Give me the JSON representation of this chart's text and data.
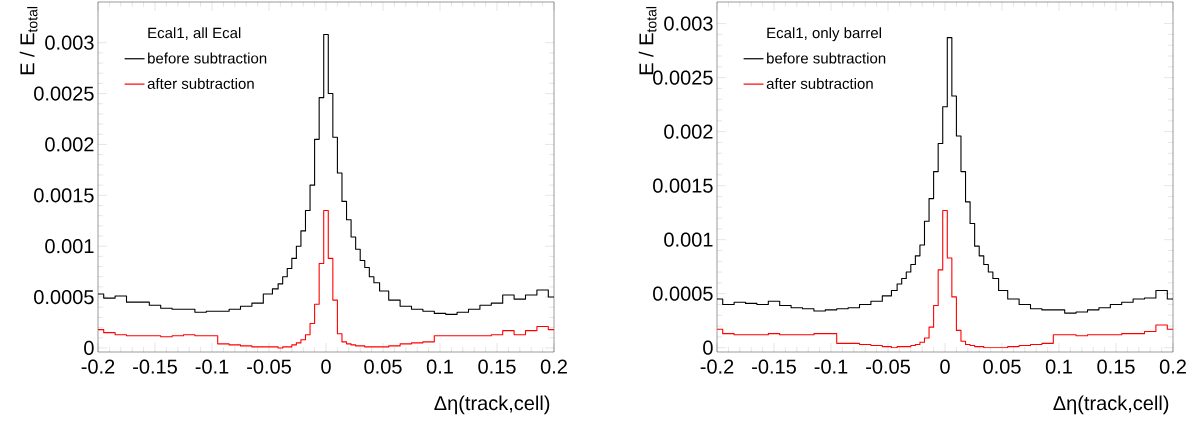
{
  "chart_data": [
    {
      "type": "step",
      "legend_title": "Ecal1, all Ecal",
      "xlabel": "Δη(track,cell)",
      "ylabel": "E / E$_{total}$",
      "legend": "top left",
      "xlim": [
        -0.2,
        0.2
      ],
      "ylim": [
        -4e-05,
        0.0034
      ],
      "xticks": [
        -0.2,
        -0.15,
        -0.1,
        -0.05,
        0,
        0.05,
        0.1,
        0.15,
        0.2
      ],
      "yticks": [
        0,
        0.0005,
        0.001,
        0.0015,
        0.002,
        0.0025,
        0.003
      ],
      "x": [
        -0.2,
        -0.19,
        -0.18,
        -0.17,
        -0.16,
        -0.15,
        -0.14,
        -0.13,
        -0.12,
        -0.11,
        -0.1,
        -0.09,
        -0.08,
        -0.07,
        -0.06,
        -0.05,
        -0.044,
        -0.04,
        -0.036,
        -0.032,
        -0.028,
        -0.024,
        -0.02,
        -0.016,
        -0.012,
        -0.008,
        -0.004,
        0,
        0.004,
        0.008,
        0.012,
        0.016,
        0.02,
        0.024,
        0.028,
        0.032,
        0.036,
        0.04,
        0.044,
        0.05,
        0.06,
        0.07,
        0.08,
        0.09,
        0.1,
        0.11,
        0.12,
        0.13,
        0.14,
        0.15,
        0.16,
        0.17,
        0.18,
        0.19,
        0.2
      ],
      "series": [
        {
          "name": "before subtraction",
          "color": "#000000",
          "values": [
            0.00053,
            0.00049,
            0.00051,
            0.00045,
            0.00045,
            0.00042,
            0.00039,
            0.00038,
            0.00038,
            0.00035,
            0.00036,
            0.00036,
            0.00038,
            0.00041,
            0.00044,
            0.00053,
            0.00058,
            0.00063,
            0.0007,
            0.00078,
            0.00088,
            0.001,
            0.00115,
            0.00135,
            0.0016,
            0.00205,
            0.00246,
            0.00308,
            0.0025,
            0.00207,
            0.00172,
            0.00144,
            0.00126,
            0.00109,
            0.00097,
            0.00086,
            0.00079,
            0.0007,
            0.00064,
            0.00056,
            0.00047,
            0.00041,
            0.00038,
            0.00036,
            0.00034,
            0.00033,
            0.00035,
            0.00038,
            0.00042,
            0.00044,
            0.00052,
            0.00048,
            0.00052,
            0.00057,
            0.0005
          ]
        },
        {
          "name": "after subtraction",
          "color": "#ff0000",
          "values": [
            0.00018,
            0.00015,
            0.00013,
            0.00012,
            0.00012,
            0.00012,
            0.00011,
            0.00012,
            0.00013,
            0.00012,
            0.00012,
            4e-05,
            3e-05,
            2e-05,
            1e-05,
            1e-05,
            1e-05,
            0.0,
            1e-05,
            1e-05,
            3e-05,
            5e-05,
            8e-05,
            0.00013,
            0.00024,
            0.00043,
            0.00083,
            0.00135,
            0.00088,
            0.00047,
            0.00014,
            6e-05,
            4e-05,
            3e-05,
            2e-05,
            2e-05,
            1e-05,
            1e-05,
            1e-05,
            1e-05,
            2e-05,
            4e-05,
            5e-05,
            6e-05,
            0.00012,
            0.00012,
            0.00012,
            0.00012,
            0.00012,
            0.00013,
            0.00017,
            0.00013,
            0.00017,
            0.00021,
            0.00018
          ]
        }
      ]
    },
    {
      "type": "step",
      "legend_title": "Ecal1, only barrel",
      "xlabel": "Δη(track,cell)",
      "ylabel": "E / E$_{total}$",
      "legend": "top left",
      "xlim": [
        -0.2,
        0.2
      ],
      "ylim": [
        -4e-05,
        0.0032
      ],
      "xticks": [
        -0.2,
        -0.15,
        -0.1,
        -0.05,
        0,
        0.05,
        0.1,
        0.15,
        0.2
      ],
      "yticks": [
        0,
        0.0005,
        0.001,
        0.0015,
        0.002,
        0.0025,
        0.003
      ],
      "x": [
        -0.2,
        -0.19,
        -0.18,
        -0.17,
        -0.16,
        -0.15,
        -0.14,
        -0.13,
        -0.12,
        -0.11,
        -0.1,
        -0.09,
        -0.08,
        -0.07,
        -0.06,
        -0.05,
        -0.044,
        -0.04,
        -0.036,
        -0.032,
        -0.028,
        -0.024,
        -0.02,
        -0.016,
        -0.012,
        -0.008,
        -0.004,
        0,
        0.004,
        0.008,
        0.012,
        0.016,
        0.02,
        0.024,
        0.028,
        0.032,
        0.036,
        0.04,
        0.044,
        0.05,
        0.06,
        0.07,
        0.08,
        0.09,
        0.1,
        0.11,
        0.12,
        0.13,
        0.14,
        0.15,
        0.16,
        0.17,
        0.18,
        0.19,
        0.2
      ],
      "series": [
        {
          "name": "before subtraction",
          "color": "#000000",
          "values": [
            0.00045,
            0.0004,
            0.00042,
            0.00041,
            0.0004,
            0.00043,
            0.00039,
            0.00037,
            0.00036,
            0.00034,
            0.00035,
            0.00036,
            0.00037,
            0.0004,
            0.00043,
            0.00048,
            0.00053,
            0.00059,
            0.00064,
            0.0007,
            0.00077,
            0.00085,
            0.00095,
            0.00117,
            0.00138,
            0.00163,
            0.00189,
            0.00223,
            0.00287,
            0.00233,
            0.00196,
            0.00163,
            0.00135,
            0.00115,
            0.00094,
            0.00085,
            0.00077,
            0.0007,
            0.00064,
            0.00053,
            0.00045,
            0.0004,
            0.00036,
            0.00035,
            0.00035,
            0.00032,
            0.00033,
            0.00035,
            0.00037,
            0.0004,
            0.00042,
            0.00045,
            0.00046,
            0.00053,
            0.00045
          ]
        },
        {
          "name": "after subtraction",
          "color": "#ff0000",
          "values": [
            0.00017,
            0.00013,
            0.00012,
            0.00012,
            0.00012,
            0.00013,
            0.00012,
            0.00012,
            0.00012,
            0.00013,
            0.00013,
            4e-05,
            4e-05,
            3e-05,
            2e-05,
            1e-05,
            0.0,
            1e-05,
            1e-05,
            1e-05,
            2e-05,
            3e-05,
            5e-05,
            9e-05,
            0.00019,
            0.00039,
            0.00072,
            0.00127,
            0.00083,
            0.00047,
            0.00016,
            6e-05,
            3e-05,
            2e-05,
            1e-05,
            1e-05,
            0.0,
            0.0,
            0.0,
            0.0,
            1e-05,
            2e-05,
            3e-05,
            4e-05,
            0.00012,
            0.00012,
            0.00011,
            0.00012,
            0.00012,
            0.00012,
            0.00013,
            0.00013,
            0.00015,
            0.00021,
            0.00017
          ]
        }
      ]
    }
  ]
}
